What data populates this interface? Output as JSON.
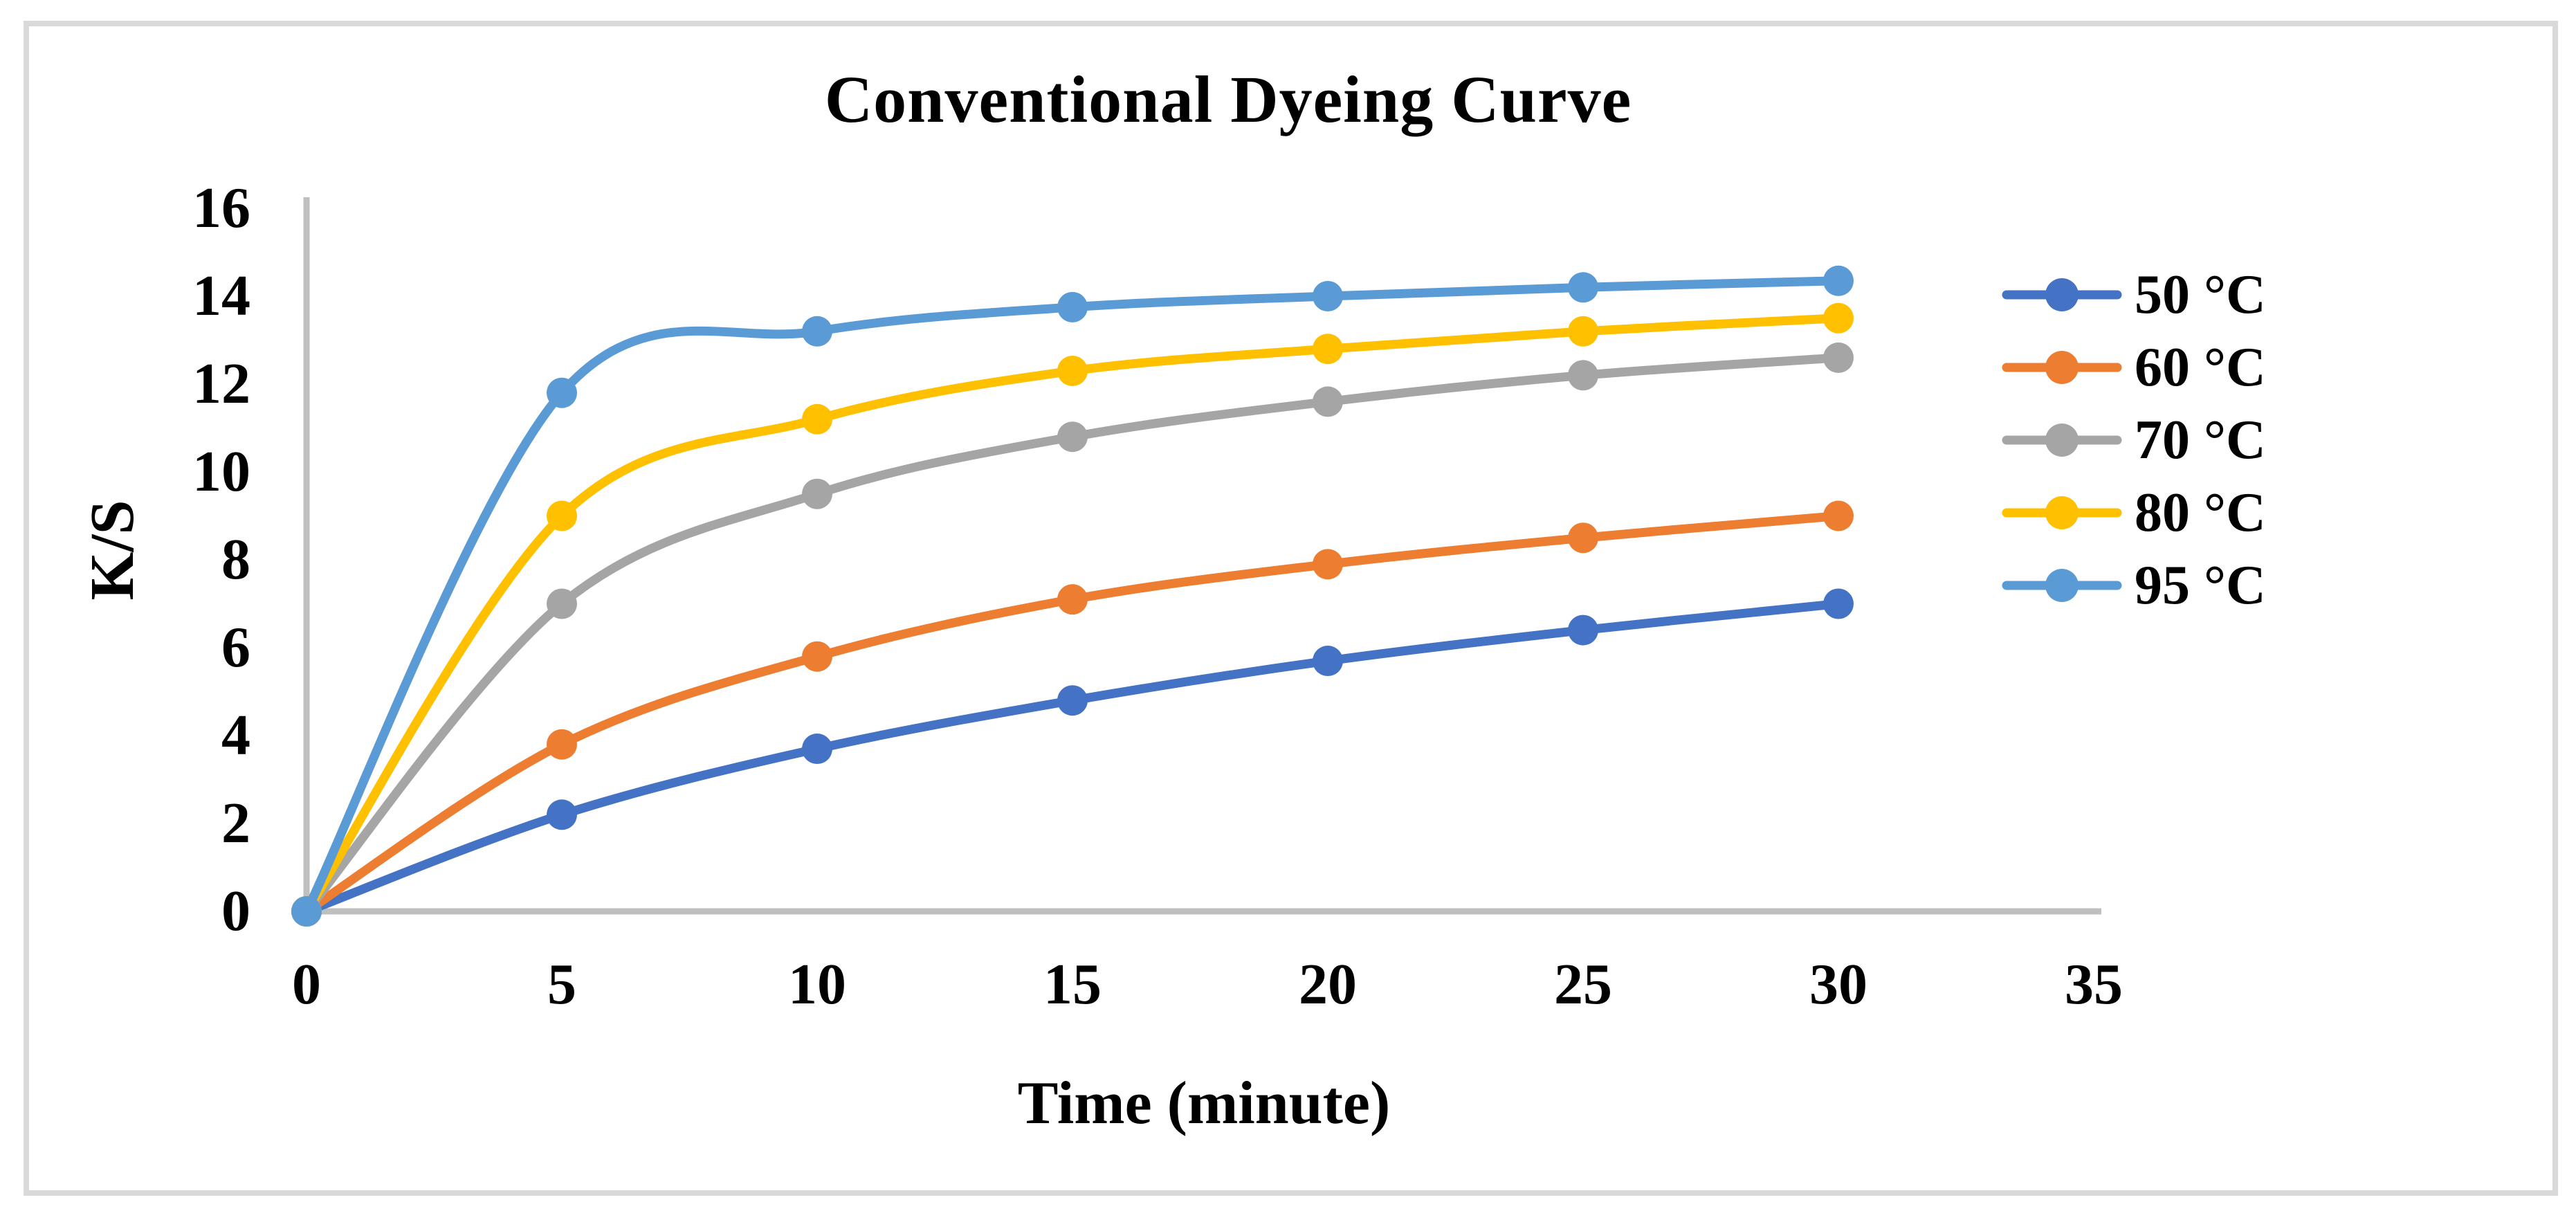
{
  "chart_data": {
    "type": "line",
    "title": "Conventional Dyeing Curve",
    "xlabel": "Time (minute)",
    "ylabel": "K/S",
    "x": [
      0,
      5,
      10,
      15,
      20,
      25,
      30
    ],
    "series": [
      {
        "name": "50 °C",
        "color": "#4472C4",
        "values": [
          0,
          2.2,
          3.7,
          4.8,
          5.7,
          6.4,
          7.0
        ]
      },
      {
        "name": "60 °C",
        "color": "#ED7D31",
        "values": [
          0,
          3.8,
          5.8,
          7.1,
          7.9,
          8.5,
          9.0
        ]
      },
      {
        "name": "70 °C",
        "color": "#A5A5A5",
        "values": [
          0,
          7.0,
          9.5,
          10.8,
          11.6,
          12.2,
          12.6
        ]
      },
      {
        "name": "80 °C",
        "color": "#FFC000",
        "values": [
          0,
          9.0,
          11.2,
          12.3,
          12.8,
          13.2,
          13.5
        ]
      },
      {
        "name": "95 °C",
        "color": "#5B9BD5",
        "values": [
          0,
          11.8,
          13.2,
          13.75,
          14.0,
          14.2,
          14.35
        ]
      }
    ],
    "xlim": [
      0,
      35
    ],
    "ylim": [
      0,
      16
    ],
    "x_tick_labels": [
      "0",
      "5",
      "10",
      "15",
      "20",
      "25",
      "30",
      "35"
    ],
    "y_tick_labels": [
      "0",
      "2",
      "4",
      "6",
      "8",
      "10",
      "12",
      "14",
      "16"
    ],
    "grid": false,
    "smooth_lines": true,
    "marker": "circle",
    "legend_position": "right",
    "axis_color": "#BFBFBF",
    "figure_border_color": "#D9D9D9",
    "text_color": "#000000",
    "background_color": "#FFFFFF"
  }
}
